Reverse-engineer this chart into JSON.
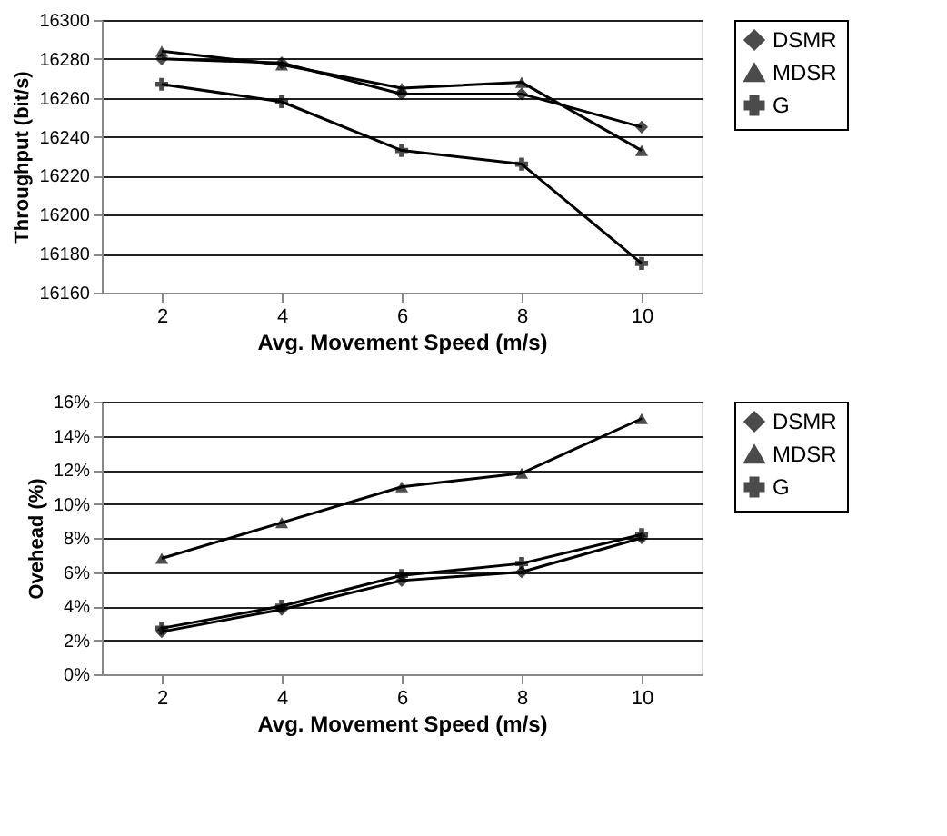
{
  "chart_data": [
    {
      "type": "line",
      "xlabel": "Avg. Movement Speed (m/s)",
      "ylabel": "Throughput (bit/s)",
      "categories": [
        "2",
        "4",
        "6",
        "8",
        "10"
      ],
      "ylim": [
        16160,
        16300
      ],
      "yticks": [
        16160,
        16180,
        16200,
        16220,
        16240,
        16260,
        16280,
        16300
      ],
      "grid": "y",
      "legend": "right",
      "series": [
        {
          "name": "DSMR",
          "color": "#000000",
          "marker": "diamond",
          "values": [
            16280,
            16278,
            16262,
            16262,
            16245
          ]
        },
        {
          "name": "MDSR",
          "color": "#000000",
          "marker": "triangle",
          "values": [
            16284,
            16277,
            16265,
            16268,
            16233
          ]
        },
        {
          "name": "G",
          "color": "#000000",
          "marker": "cross",
          "values": [
            16267,
            16258,
            16233,
            16226,
            16175
          ]
        }
      ]
    },
    {
      "type": "line",
      "xlabel": "Avg. Movement Speed (m/s)",
      "ylabel": "Ovehead (%)",
      "categories": [
        "2",
        "4",
        "6",
        "8",
        "10"
      ],
      "ylim": [
        0,
        16
      ],
      "yticks": [
        {
          "value": 0,
          "label": "0%"
        },
        {
          "value": 2,
          "label": "2%"
        },
        {
          "value": 4,
          "label": "4%"
        },
        {
          "value": 6,
          "label": "6%"
        },
        {
          "value": 8,
          "label": "8%"
        },
        {
          "value": 10,
          "label": "10%"
        },
        {
          "value": 12,
          "label": "12%"
        },
        {
          "value": 14,
          "label": "14%"
        },
        {
          "value": 16,
          "label": "16%"
        }
      ],
      "grid": "y",
      "legend": "right",
      "series": [
        {
          "name": "DSMR",
          "color": "#000000",
          "marker": "diamond",
          "values": [
            2.5,
            3.8,
            5.5,
            6.0,
            8.0
          ]
        },
        {
          "name": "MDSR",
          "color": "#000000",
          "marker": "triangle",
          "values": [
            6.8,
            8.9,
            11.0,
            11.8,
            15.0
          ]
        },
        {
          "name": "G",
          "color": "#000000",
          "marker": "cross",
          "values": [
            2.7,
            4.0,
            5.8,
            6.5,
            8.2
          ]
        }
      ]
    }
  ]
}
